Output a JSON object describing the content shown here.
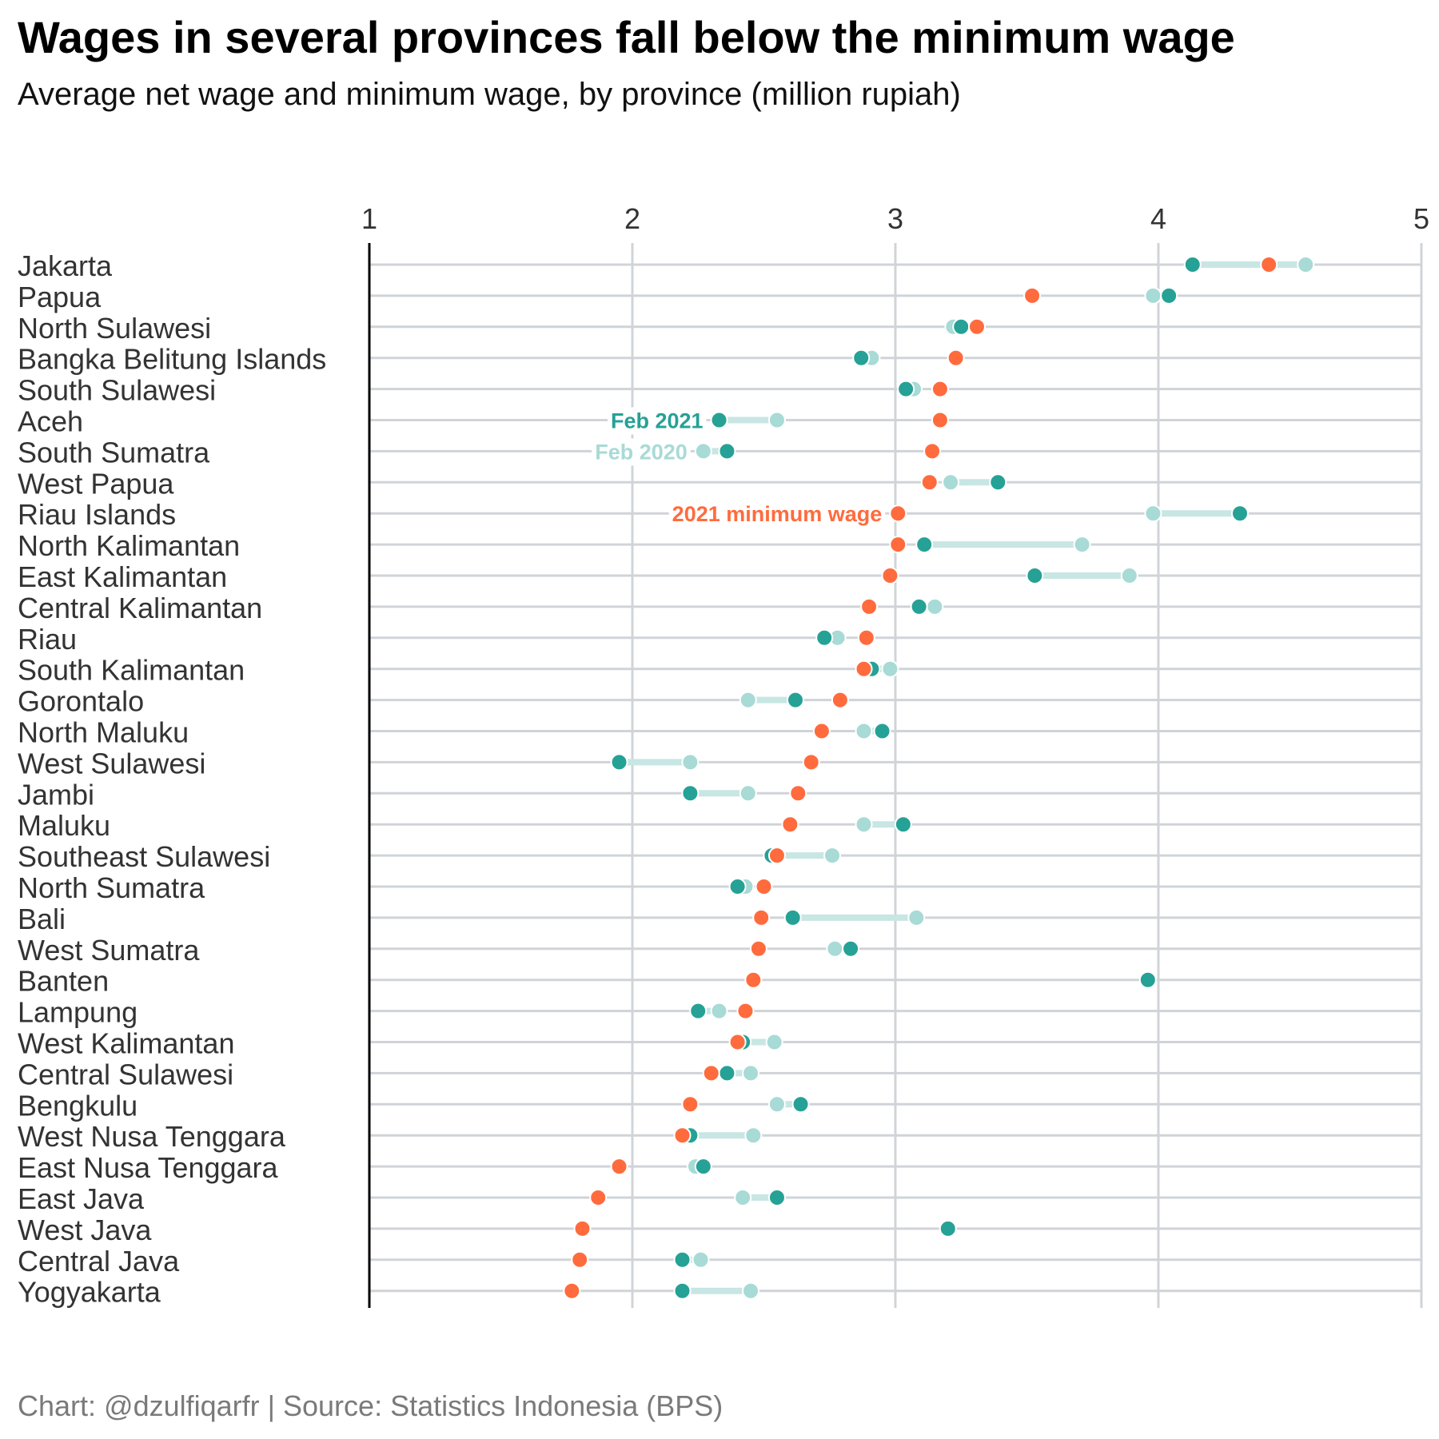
{
  "title": "Wages in several provinces fall below the minimum wage",
  "subtitle": "Average net wage and minimum wage, by province (million rupiah)",
  "caption": "Chart: @dzulfiqarfr | Source: Statistics Indonesia (BPS)",
  "colors": {
    "feb2021": "#26a196",
    "feb2020": "#a8dad6",
    "minimum_wage": "#ff6b3d",
    "gridline": "#d0d4d8",
    "segment": "#c8e6e3",
    "axis_text": "#333333"
  },
  "chart_data": {
    "type": "dot",
    "title": "Wages in several provinces fall below the minimum wage",
    "subtitle": "Average net wage and minimum wage, by province (million rupiah)",
    "xlim": [
      1,
      5
    ],
    "xticks": [
      1,
      2,
      3,
      4,
      5
    ],
    "tick_labels": [
      "1",
      "2",
      "3",
      "4",
      "5"
    ],
    "grid": true,
    "annotations": {
      "feb2021": "Feb 2021",
      "feb2020": "Feb 2020",
      "minimum_wage": "2021 minimum wage"
    },
    "categories": [
      "Jakarta",
      "Papua",
      "North Sulawesi",
      "Bangka Belitung Islands",
      "South Sulawesi",
      "Aceh",
      "South Sumatra",
      "West Papua",
      "Riau Islands",
      "North Kalimantan",
      "East Kalimantan",
      "Central Kalimantan",
      "Riau",
      "South Kalimantan",
      "Gorontalo",
      "North Maluku",
      "West Sulawesi",
      "Jambi",
      "Maluku",
      "Southeast Sulawesi",
      "North Sumatra",
      "Bali",
      "West Sumatra",
      "Banten",
      "Lampung",
      "West Kalimantan",
      "Central Sulawesi",
      "Bengkulu",
      "West Nusa Tenggara",
      "East Nusa Tenggara",
      "East Java",
      "West Java",
      "Central Java",
      "Yogyakarta"
    ],
    "series": [
      {
        "name": "Feb 2020",
        "values": [
          4.56,
          3.98,
          3.22,
          2.91,
          3.07,
          2.55,
          2.27,
          3.21,
          3.98,
          3.71,
          3.89,
          3.15,
          2.78,
          2.98,
          2.44,
          2.88,
          2.22,
          2.44,
          2.88,
          2.76,
          2.43,
          3.08,
          2.77,
          3.96,
          2.33,
          2.54,
          2.45,
          2.55,
          2.46,
          2.24,
          2.42,
          3.2,
          2.26,
          2.45
        ]
      },
      {
        "name": "Feb 2021",
        "values": [
          4.13,
          4.04,
          3.25,
          2.87,
          3.04,
          2.33,
          2.36,
          3.39,
          4.31,
          3.11,
          3.53,
          3.09,
          2.73,
          2.91,
          2.62,
          2.95,
          1.95,
          2.22,
          3.03,
          2.53,
          2.4,
          2.61,
          2.83,
          3.96,
          2.25,
          2.42,
          2.36,
          2.64,
          2.22,
          2.27,
          2.55,
          3.2,
          2.19,
          2.19
        ]
      },
      {
        "name": "2021 minimum wage",
        "values": [
          4.42,
          3.52,
          3.31,
          3.23,
          3.17,
          3.17,
          3.14,
          3.13,
          3.01,
          3.01,
          2.98,
          2.9,
          2.89,
          2.88,
          2.79,
          2.72,
          2.68,
          2.63,
          2.6,
          2.55,
          2.5,
          2.49,
          2.48,
          2.46,
          2.43,
          2.4,
          2.3,
          2.22,
          2.19,
          1.95,
          1.87,
          1.81,
          1.8,
          1.77
        ]
      }
    ]
  }
}
